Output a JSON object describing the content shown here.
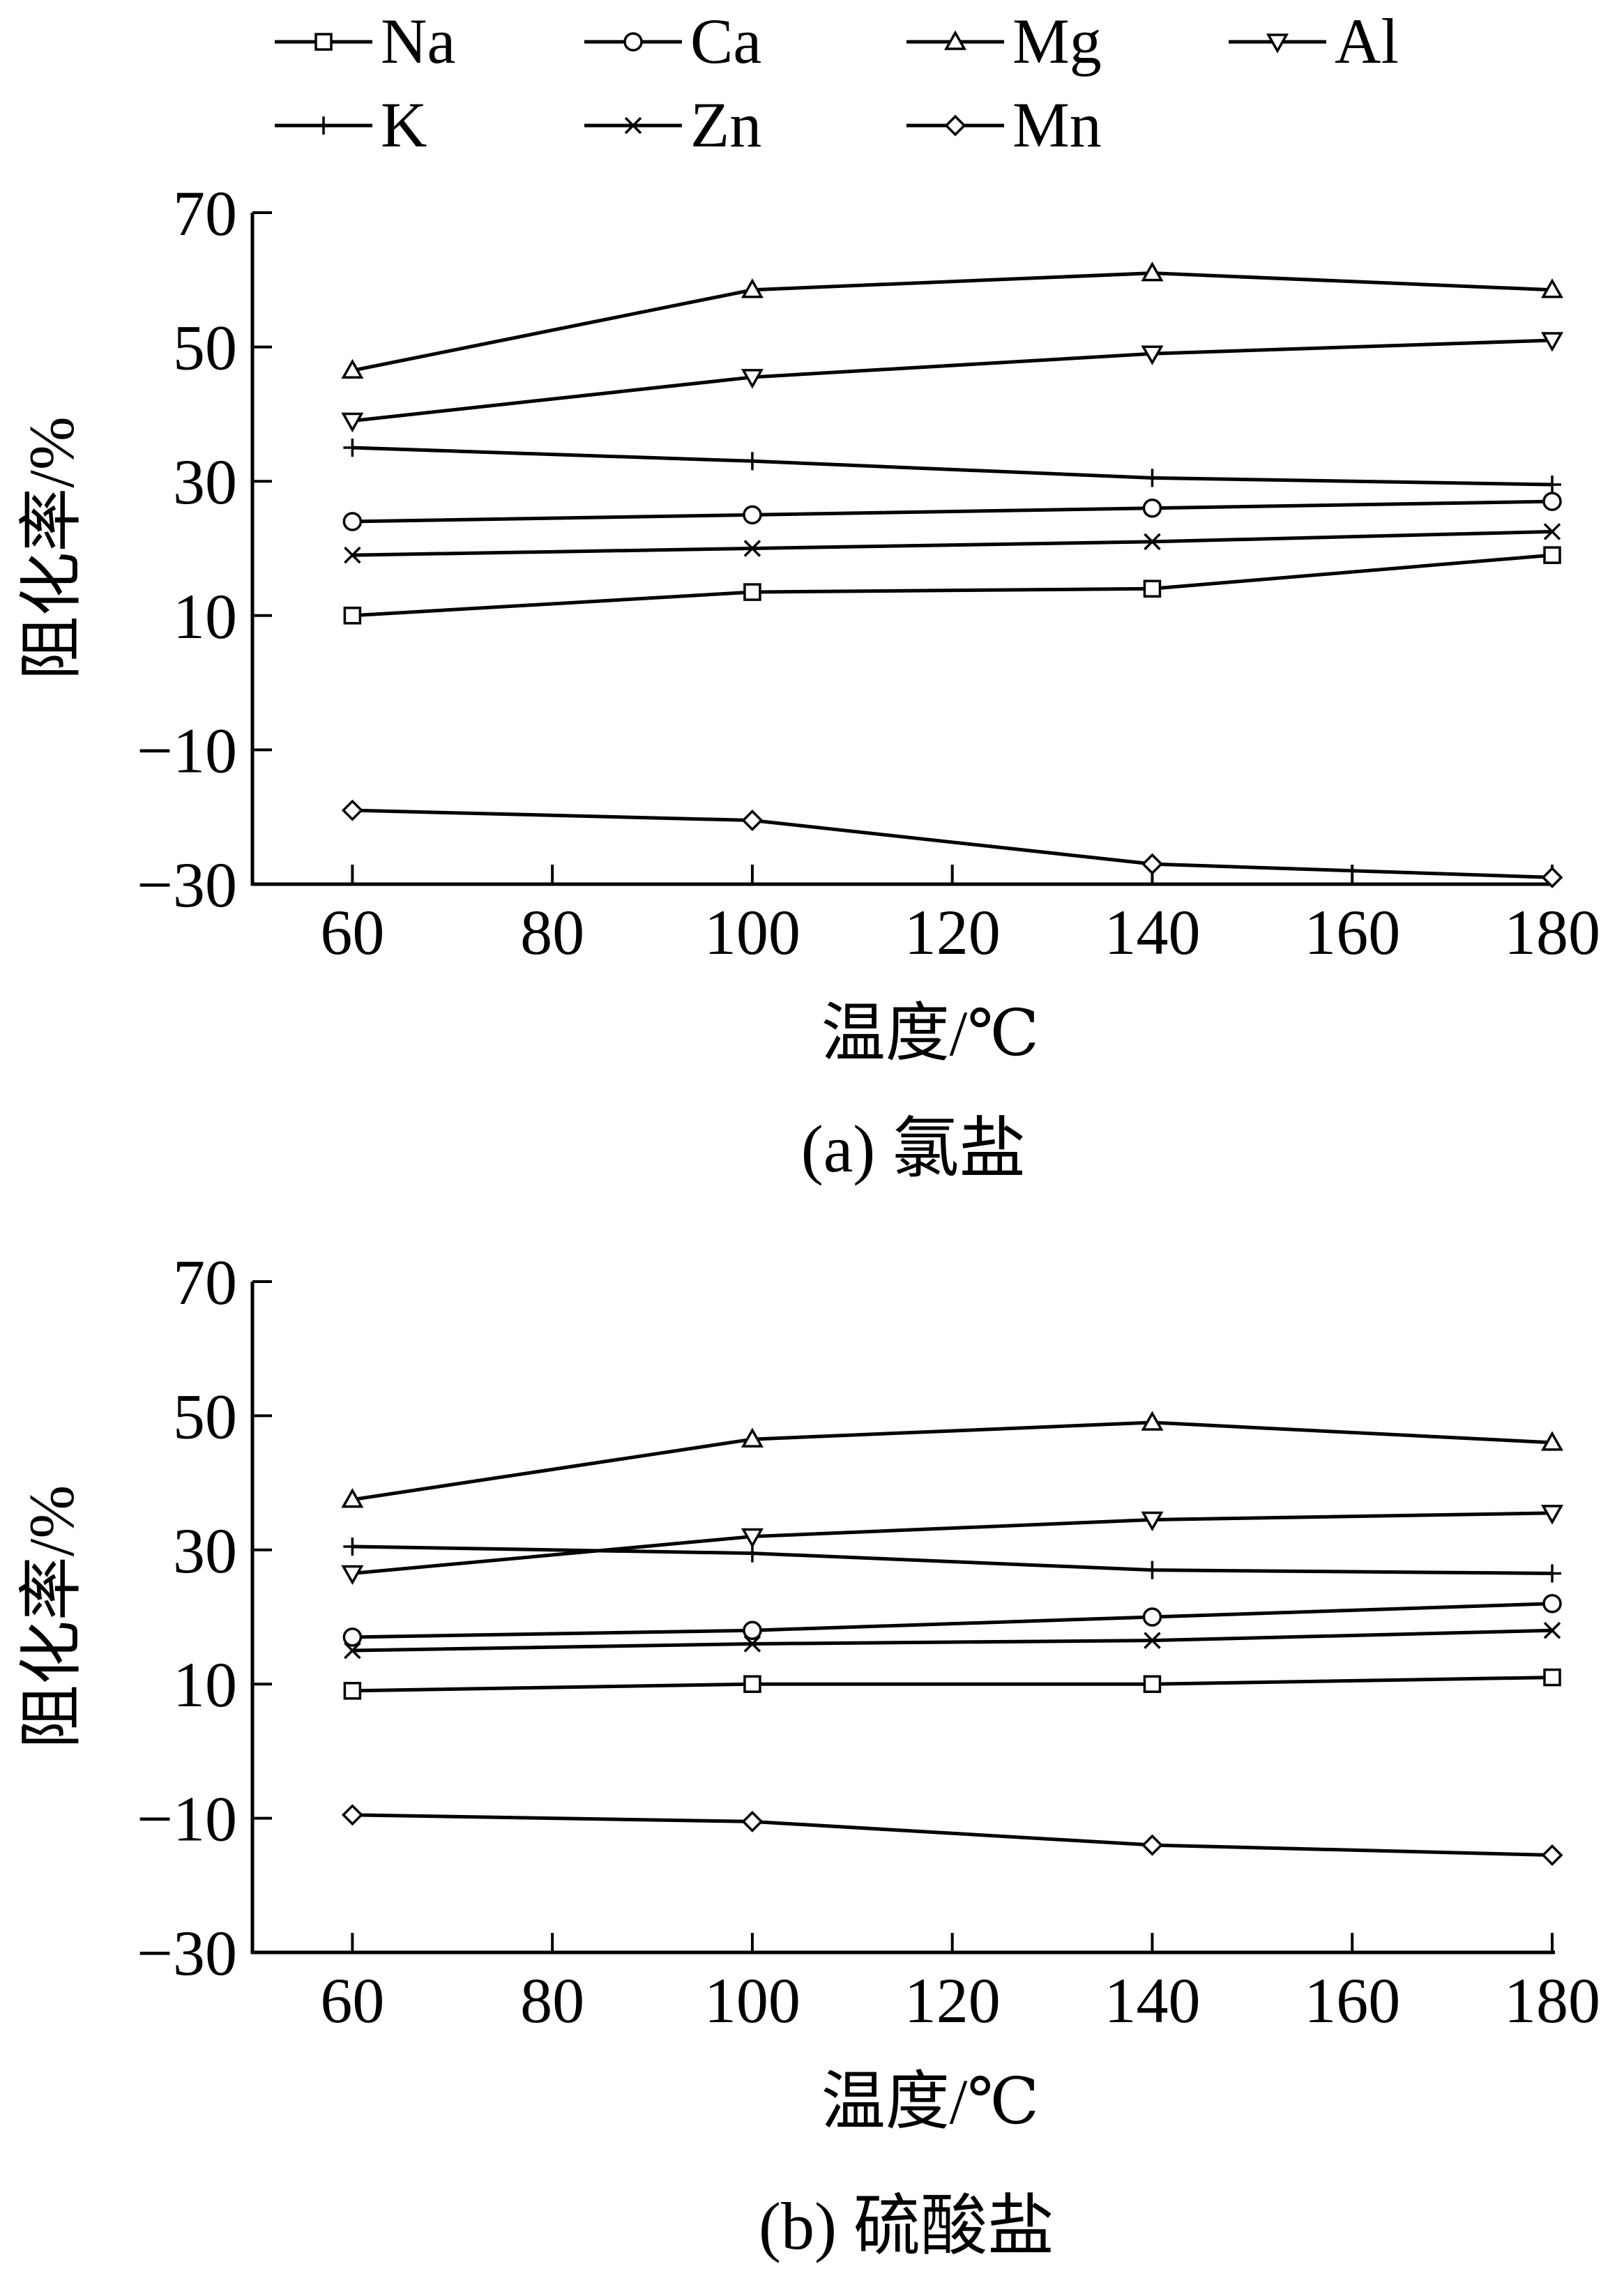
{
  "legend": {
    "items": [
      {
        "name": "Na",
        "marker": "square"
      },
      {
        "name": "Ca",
        "marker": "circle"
      },
      {
        "name": "Mg",
        "marker": "triangle-up"
      },
      {
        "name": "Al",
        "marker": "triangle-down"
      },
      {
        "name": "K",
        "marker": "plus"
      },
      {
        "name": "Zn",
        "marker": "x"
      },
      {
        "name": "Mn",
        "marker": "diamond"
      }
    ]
  },
  "chart_data": [
    {
      "type": "line",
      "title": "(a)  氯盐",
      "xlabel": "温度/℃",
      "ylabel": "阻化率/%",
      "x": [
        60,
        100,
        140,
        180
      ],
      "xticks": [
        60,
        80,
        100,
        120,
        140,
        160,
        180
      ],
      "xlim": [
        50,
        180
      ],
      "yticks": [
        -30,
        -10,
        10,
        30,
        50,
        70
      ],
      "ytick_labels": [
        "−30",
        "−10",
        "10",
        "30",
        "50",
        "70"
      ],
      "ylim": [
        -30,
        70
      ],
      "series": [
        {
          "name": "Na",
          "marker": "square",
          "values": [
            10,
            13.5,
            14,
            19
          ]
        },
        {
          "name": "Ca",
          "marker": "circle",
          "values": [
            24,
            25,
            26,
            27
          ]
        },
        {
          "name": "Mg",
          "marker": "triangle-up",
          "values": [
            46.5,
            58.5,
            61,
            58.5
          ]
        },
        {
          "name": "Al",
          "marker": "triangle-down",
          "values": [
            39,
            45.5,
            49,
            51
          ]
        },
        {
          "name": "K",
          "marker": "plus",
          "values": [
            35,
            33,
            30.5,
            29.5
          ]
        },
        {
          "name": "Zn",
          "marker": "x",
          "values": [
            19,
            20,
            21,
            22.5
          ]
        },
        {
          "name": "Mn",
          "marker": "diamond",
          "values": [
            -19,
            -20.5,
            -27,
            -29
          ]
        }
      ]
    },
    {
      "type": "line",
      "title": "(b)  硫酸盐",
      "xlabel": "温度/℃",
      "ylabel": "阻化率/%",
      "x": [
        60,
        100,
        140,
        180
      ],
      "xticks": [
        60,
        80,
        100,
        120,
        140,
        160,
        180
      ],
      "xlim": [
        50,
        180
      ],
      "yticks": [
        -30,
        -10,
        10,
        30,
        50,
        70
      ],
      "ytick_labels": [
        "−30",
        "−10",
        "10",
        "30",
        "50",
        "70"
      ],
      "ylim": [
        -30,
        70
      ],
      "series": [
        {
          "name": "Na",
          "marker": "square",
          "values": [
            9,
            10,
            10,
            11
          ]
        },
        {
          "name": "Ca",
          "marker": "circle",
          "values": [
            17,
            18,
            20,
            22
          ]
        },
        {
          "name": "Mg",
          "marker": "triangle-up",
          "values": [
            37.5,
            46.5,
            49,
            46
          ]
        },
        {
          "name": "Al",
          "marker": "triangle-down",
          "values": [
            26.5,
            32,
            34.5,
            35.5
          ]
        },
        {
          "name": "K",
          "marker": "plus",
          "values": [
            30.5,
            29.5,
            27,
            26.5
          ]
        },
        {
          "name": "Zn",
          "marker": "x",
          "values": [
            15,
            16,
            16.5,
            18
          ]
        },
        {
          "name": "Mn",
          "marker": "diamond",
          "values": [
            -9.5,
            -10.5,
            -14,
            -15.5
          ]
        }
      ]
    }
  ]
}
